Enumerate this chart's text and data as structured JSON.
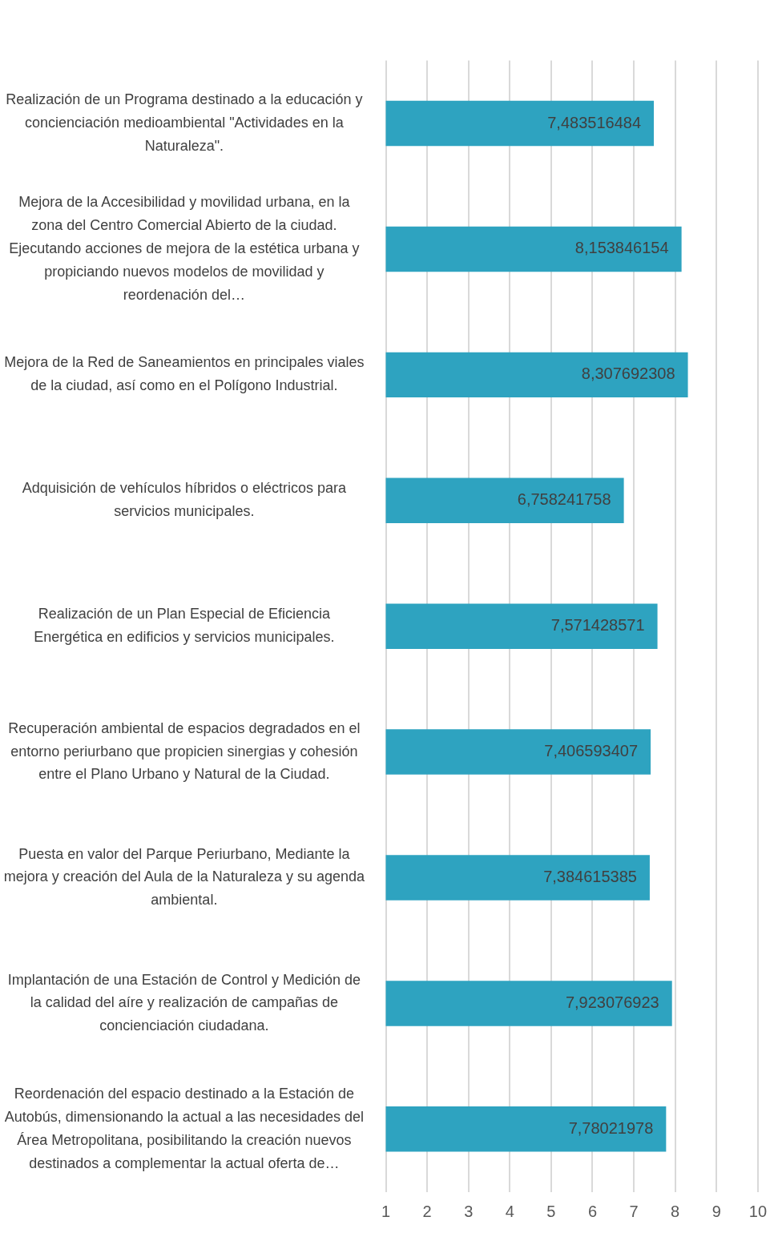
{
  "chart_data": {
    "type": "bar",
    "orientation": "horizontal",
    "categories": [
      "Realización de un Programa destinado a la educación y concienciación medioambiental \"Actividades en la Naturaleza\".",
      "Mejora de la Accesibilidad y movilidad urbana, en la zona del Centro Comercial Abierto de la ciudad. Ejecutando acciones de mejora de la estética urbana y propiciando nuevos modelos de movilidad y reordenación del…",
      "Mejora de la Red de Saneamientos en principales viales de la ciudad, así como en el Polígono Industrial.",
      "Adquisición de vehículos híbridos o eléctricos para servicios municipales.",
      "Realización de un Plan Especial de Eficiencia Energética en edificios y servicios municipales.",
      "Recuperación ambiental de espacios degradados en el entorno periurbano que propicien sinergias y cohesión entre el Plano Urbano y Natural de la Ciudad.",
      "Puesta en valor del Parque Periurbano, Mediante la mejora y creación del Aula de la Naturaleza y su agenda ambiental.",
      "Implantación de una Estación de Control y Medición de la calidad del aíre y realización de campañas de concienciación ciudadana.",
      "Reordenación del espacio destinado a la Estación de Autobús, dimensionando la actual a las necesidades del Área Metropolitana, posibilitando la creación nuevos destinados a complementar la actual oferta de…"
    ],
    "values": [
      7.483516484,
      8.153846154,
      8.307692308,
      6.758241758,
      7.571428571,
      7.406593407,
      7.384615385,
      7.923076923,
      7.78021978
    ],
    "value_labels": [
      "7,483516484",
      "8,153846154",
      "8,307692308",
      "6,758241758",
      "7,571428571",
      "7,406593407",
      "7,384615385",
      "7,923076923",
      "7,78021978"
    ],
    "color": "#2ea3c0",
    "xlim": [
      1,
      10
    ],
    "xticks": [
      1,
      2,
      3,
      4,
      5,
      6,
      7,
      8,
      9,
      10
    ],
    "grid": "x",
    "legend": false
  }
}
